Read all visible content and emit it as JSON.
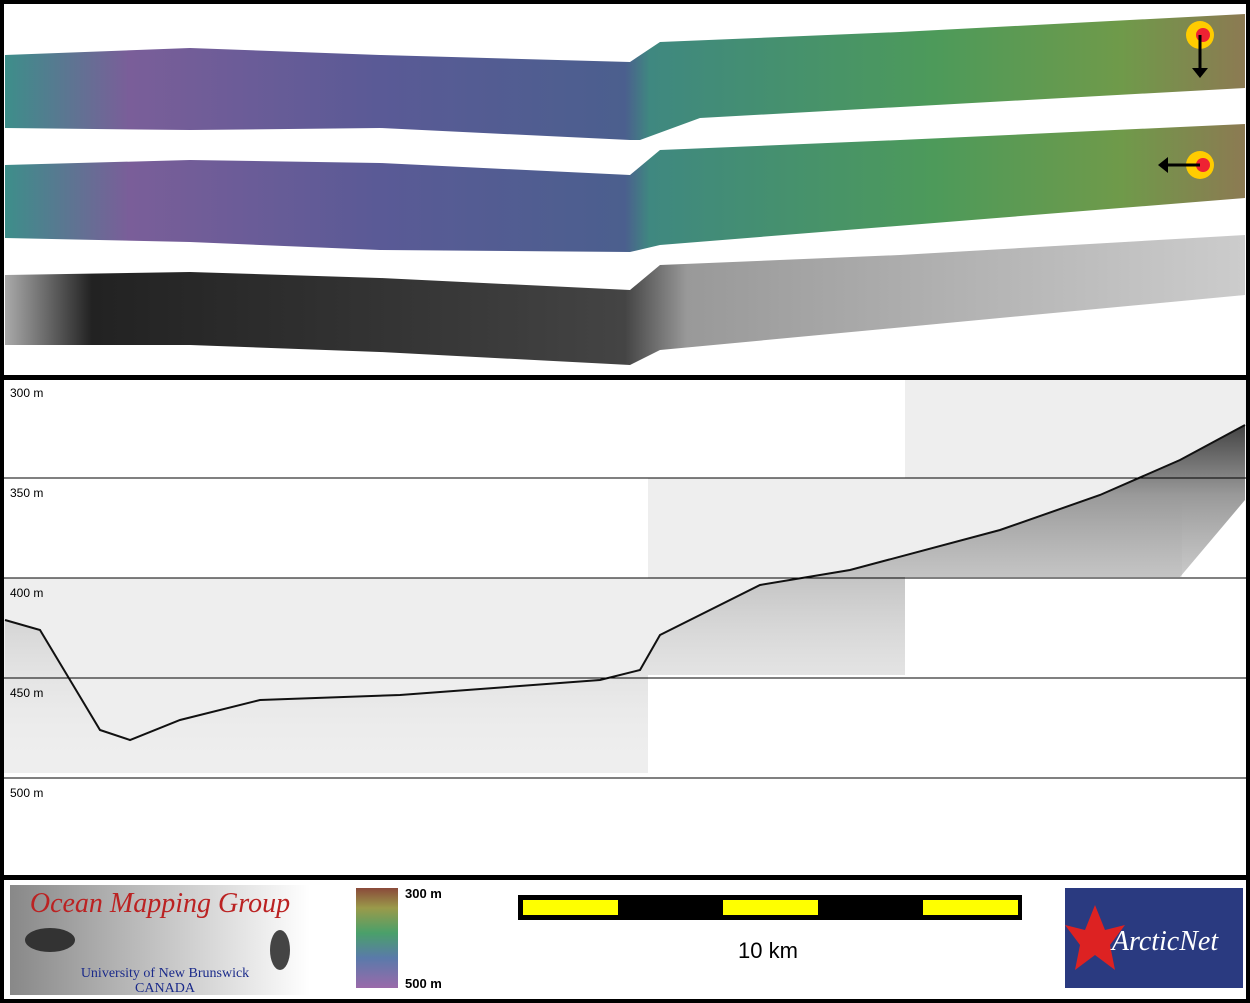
{
  "profile": {
    "depth_labels": [
      "300 m",
      "350 m",
      "400 m",
      "450 m",
      "500 m"
    ]
  },
  "legend": {
    "logo": {
      "title": "Ocean Mapping Group",
      "university": "University of New Brunswick",
      "country": "CANADA"
    },
    "colorbar": {
      "top_label": "300 m",
      "bottom_label": "500 m"
    },
    "scale_bar": {
      "label": "10 km"
    },
    "partner": "ArcticNet"
  }
}
